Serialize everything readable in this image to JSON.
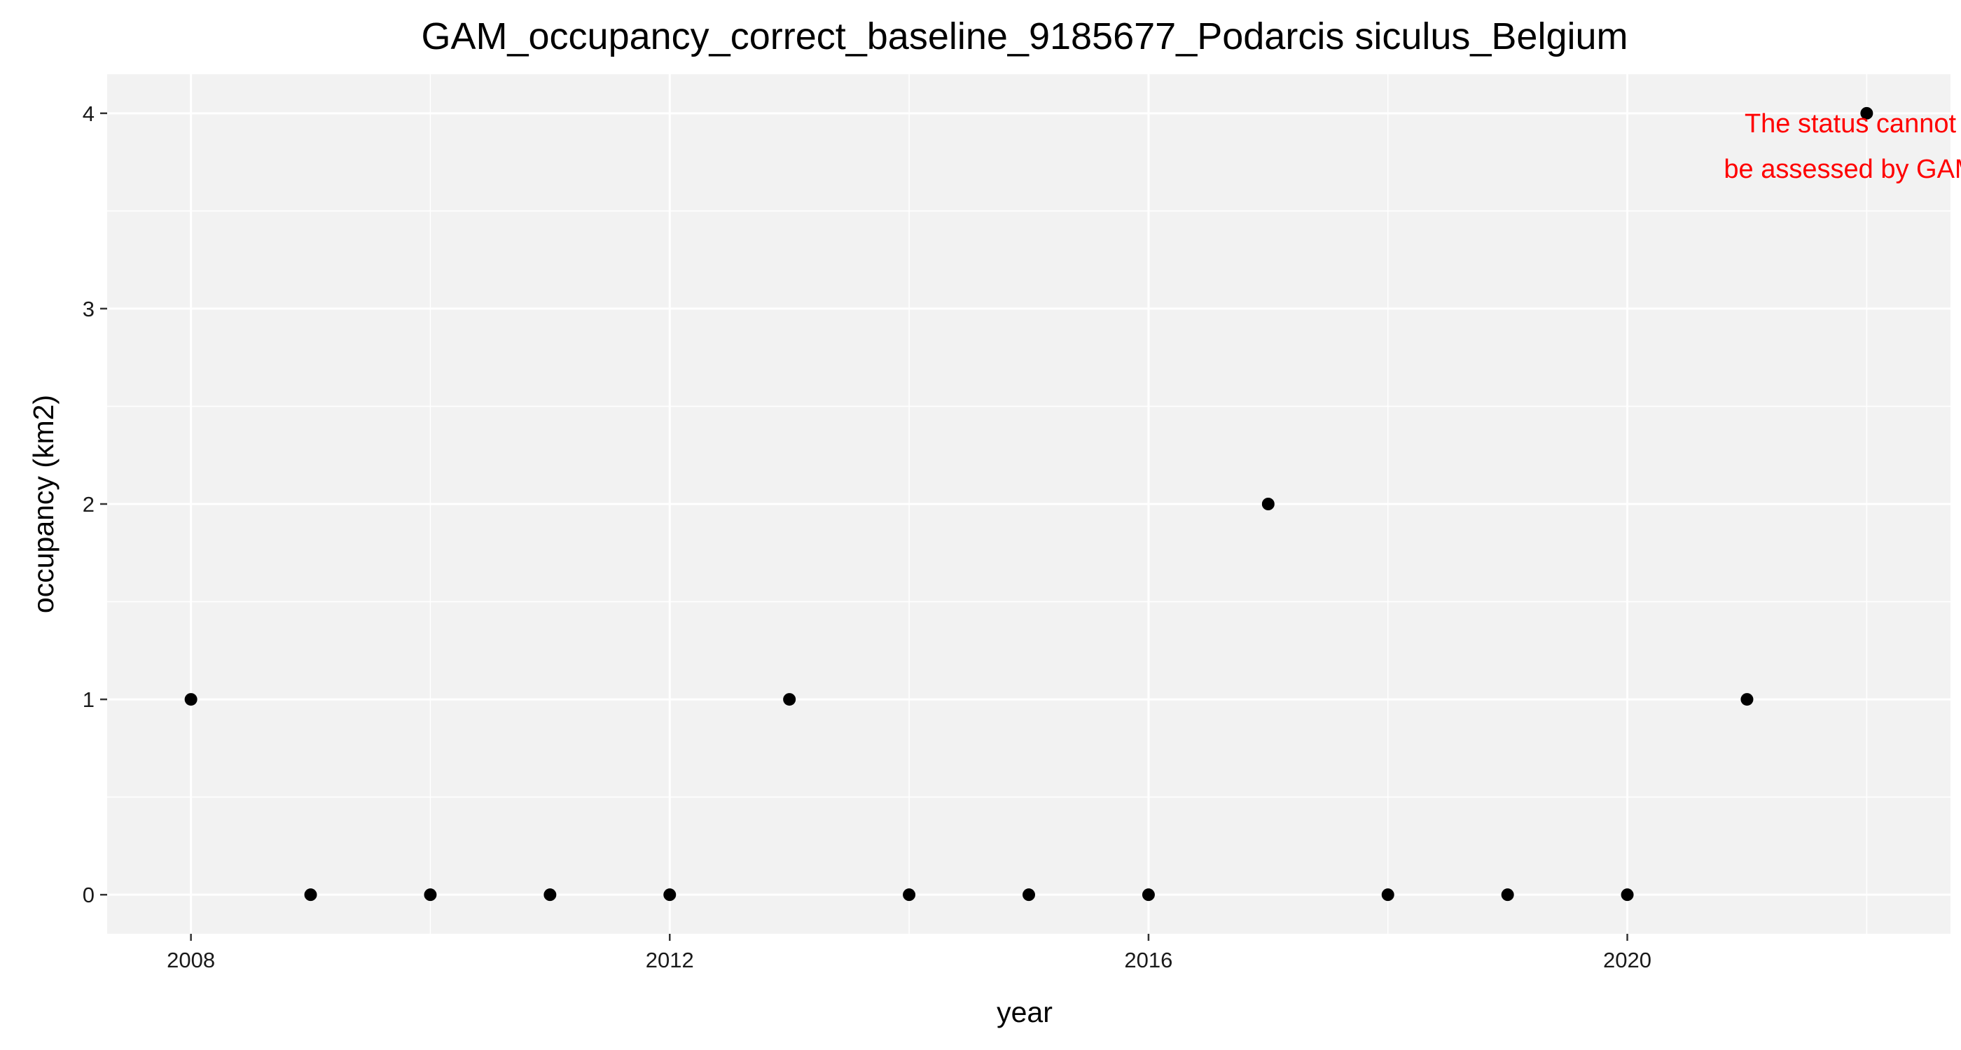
{
  "chart_data": {
    "type": "scatter",
    "title": "GAM_occupancy_correct_baseline_9185677_Podarcis siculus_Belgium",
    "xlabel": "year",
    "ylabel": "occupancy (km2)",
    "xlim": [
      2007.3,
      2022.7
    ],
    "ylim": [
      -0.2,
      4.2
    ],
    "x_ticks": [
      2008,
      2012,
      2016,
      2020
    ],
    "x_tick_labels": [
      "2008",
      "2012",
      "2016",
      "2020"
    ],
    "x_minor": [
      2010,
      2014,
      2018,
      2022
    ],
    "y_ticks": [
      0,
      1,
      2,
      3,
      4
    ],
    "y_tick_labels": [
      "0",
      "1",
      "2",
      "3",
      "4"
    ],
    "y_minor": [
      0.5,
      1.5,
      2.5,
      3.5
    ],
    "grid": true,
    "panel_background": "#f2f2f2",
    "grid_color": "#ffffff",
    "point_color": "#000000",
    "series": [
      {
        "x": [
          2008,
          2009,
          2010,
          2011,
          2012,
          2013,
          2014,
          2015,
          2016,
          2017,
          2018,
          2019,
          2020,
          2021,
          2022
        ],
        "y": [
          1,
          0,
          0,
          0,
          0,
          1,
          0,
          0,
          0,
          2,
          0,
          0,
          0,
          1,
          4
        ]
      }
    ],
    "annotation": {
      "lines": [
        "The status cannot",
        "be assessed by GAM"
      ],
      "color": "#ff0000",
      "position": "top-right"
    }
  }
}
